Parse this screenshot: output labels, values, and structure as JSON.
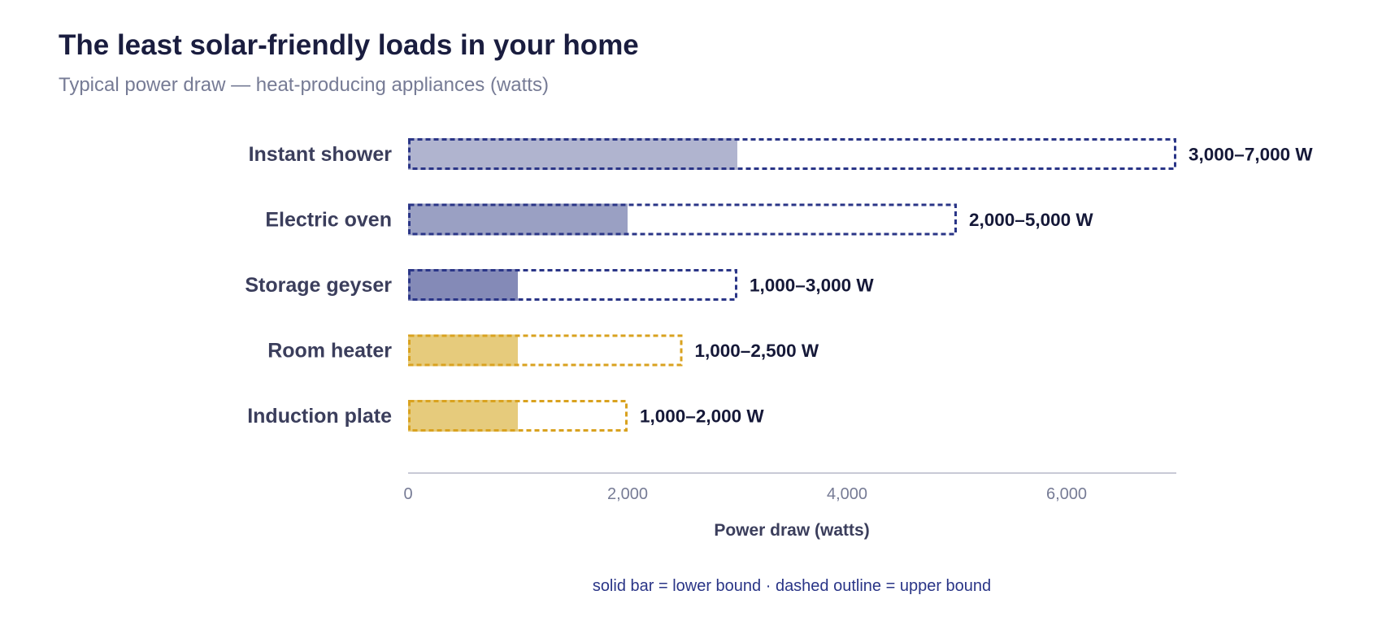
{
  "chart_data": {
    "type": "bar",
    "orientation": "horizontal",
    "title": "The least solar-friendly loads in your home",
    "subtitle": "Typical power draw — heat-producing appliances (watts)",
    "xlabel": "Power draw (watts)",
    "ylabel": "",
    "xlim": [
      0,
      7000
    ],
    "xticks": [
      0,
      2000,
      4000,
      6000
    ],
    "xtick_labels": [
      "0",
      "2,000",
      "4,000",
      "6,000"
    ],
    "grid": false,
    "legend_note": "solid bar = lower bound · dashed outline = upper bound",
    "categories": [
      "Instant shower",
      "Electric oven",
      "Storage geyser",
      "Room heater",
      "Induction plate"
    ],
    "series": [
      {
        "name": "lower bound",
        "values": [
          3000,
          2000,
          1000,
          1000,
          1000
        ]
      },
      {
        "name": "upper bound",
        "values": [
          7000,
          5000,
          3000,
          2500,
          2000
        ]
      }
    ],
    "data_labels": [
      "3,000–7,000 W",
      "2,000–5,000 W",
      "1,000–3,000 W",
      "1,000–2,500 W",
      "1,000–2,000 W"
    ],
    "colors": {
      "fills": [
        "#b0b4cf",
        "#9aa0c3",
        "#848ab7",
        "#e6cb7c",
        "#e6cb7c"
      ],
      "strokes": [
        "#2a3587",
        "#2a3587",
        "#2a3587",
        "#d9a21f",
        "#d9a21f"
      ],
      "axis": "#c8cad6"
    }
  }
}
